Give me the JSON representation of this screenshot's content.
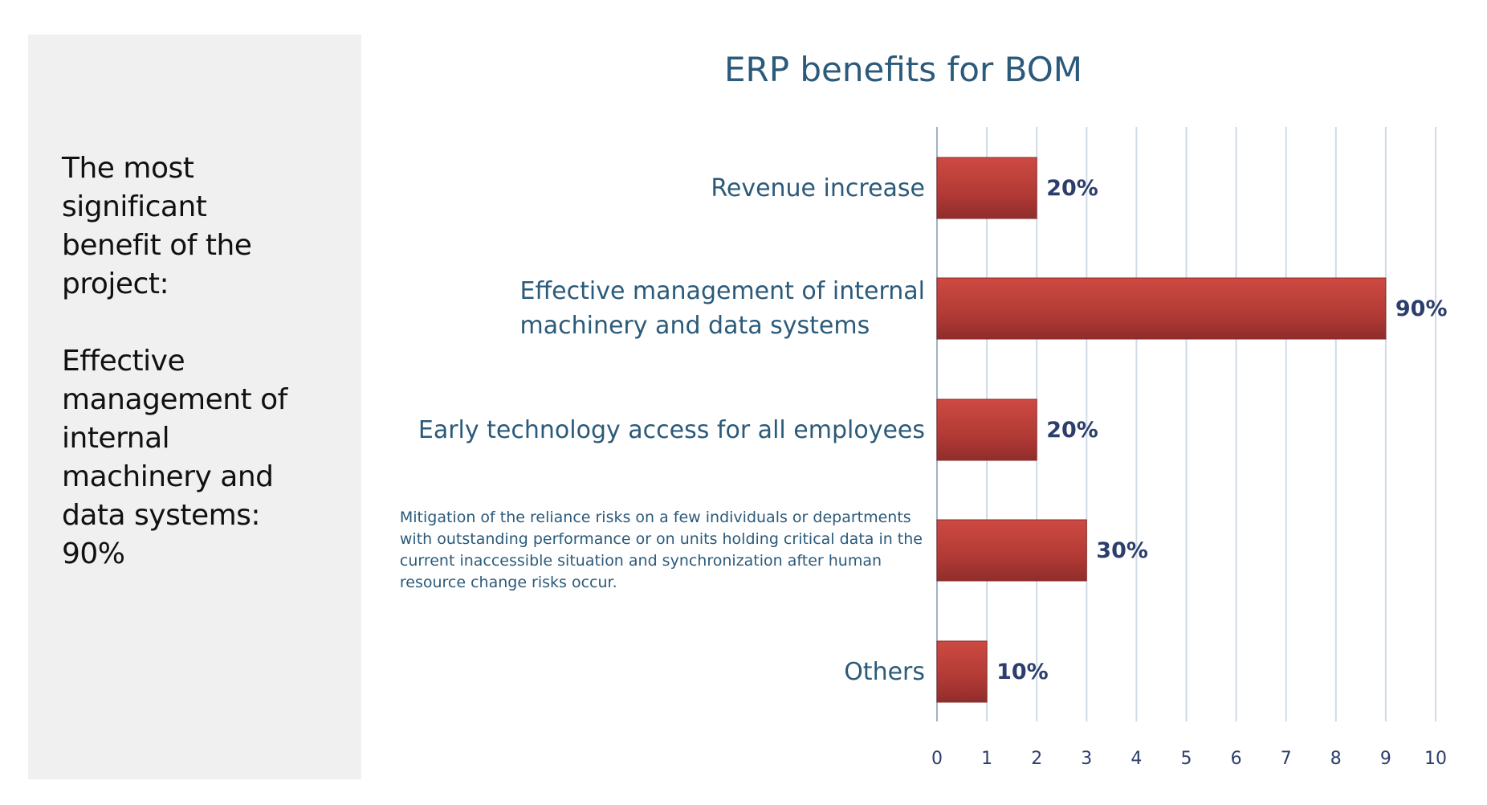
{
  "side_panel": {
    "lines_top": [
      "The most",
      "significant",
      "benefit of the",
      "project:"
    ],
    "lines_bottom": [
      "Effective",
      "management of",
      "internal",
      "machinery and",
      "data systems:",
      "90%"
    ]
  },
  "chart_data": {
    "type": "bar",
    "orientation": "horizontal",
    "title": "ERP benefits for BOM",
    "categories": [
      "Revenue increase",
      "Effective management of internal machinery and data systems",
      "Early technology access for all employees",
      "Mitigation of the reliance risks on a few individuals or departments with outstanding performance or on units holding critical data in the current inaccessible situation and synchronization after human resource change risks occur.",
      "Others"
    ],
    "category_lines": [
      [
        "Revenue increase"
      ],
      [
        "Effective management of internal",
        "machinery and data systems"
      ],
      [
        "Early technology access for all employees"
      ],
      [
        "Mitigation of the reliance risks on a few individuals or departments",
        "with outstanding performance or on units holding critical data in the",
        "current inaccessible situation and synchronization after human",
        "resource change risks occur."
      ],
      [
        "Others"
      ]
    ],
    "values": [
      2,
      9,
      2,
      3,
      1
    ],
    "data_labels": [
      "20%",
      "90%",
      "20%",
      "30%",
      "10%"
    ],
    "xlim": [
      0,
      10
    ],
    "xticks": [
      "0",
      "1",
      "2",
      "3",
      "4",
      "5",
      "6",
      "7",
      "8",
      "9",
      "10"
    ],
    "grid": true,
    "bar_color": "#c0443c",
    "label_color": "#2b5a7a",
    "data_label_color": "#2c3e6b"
  }
}
